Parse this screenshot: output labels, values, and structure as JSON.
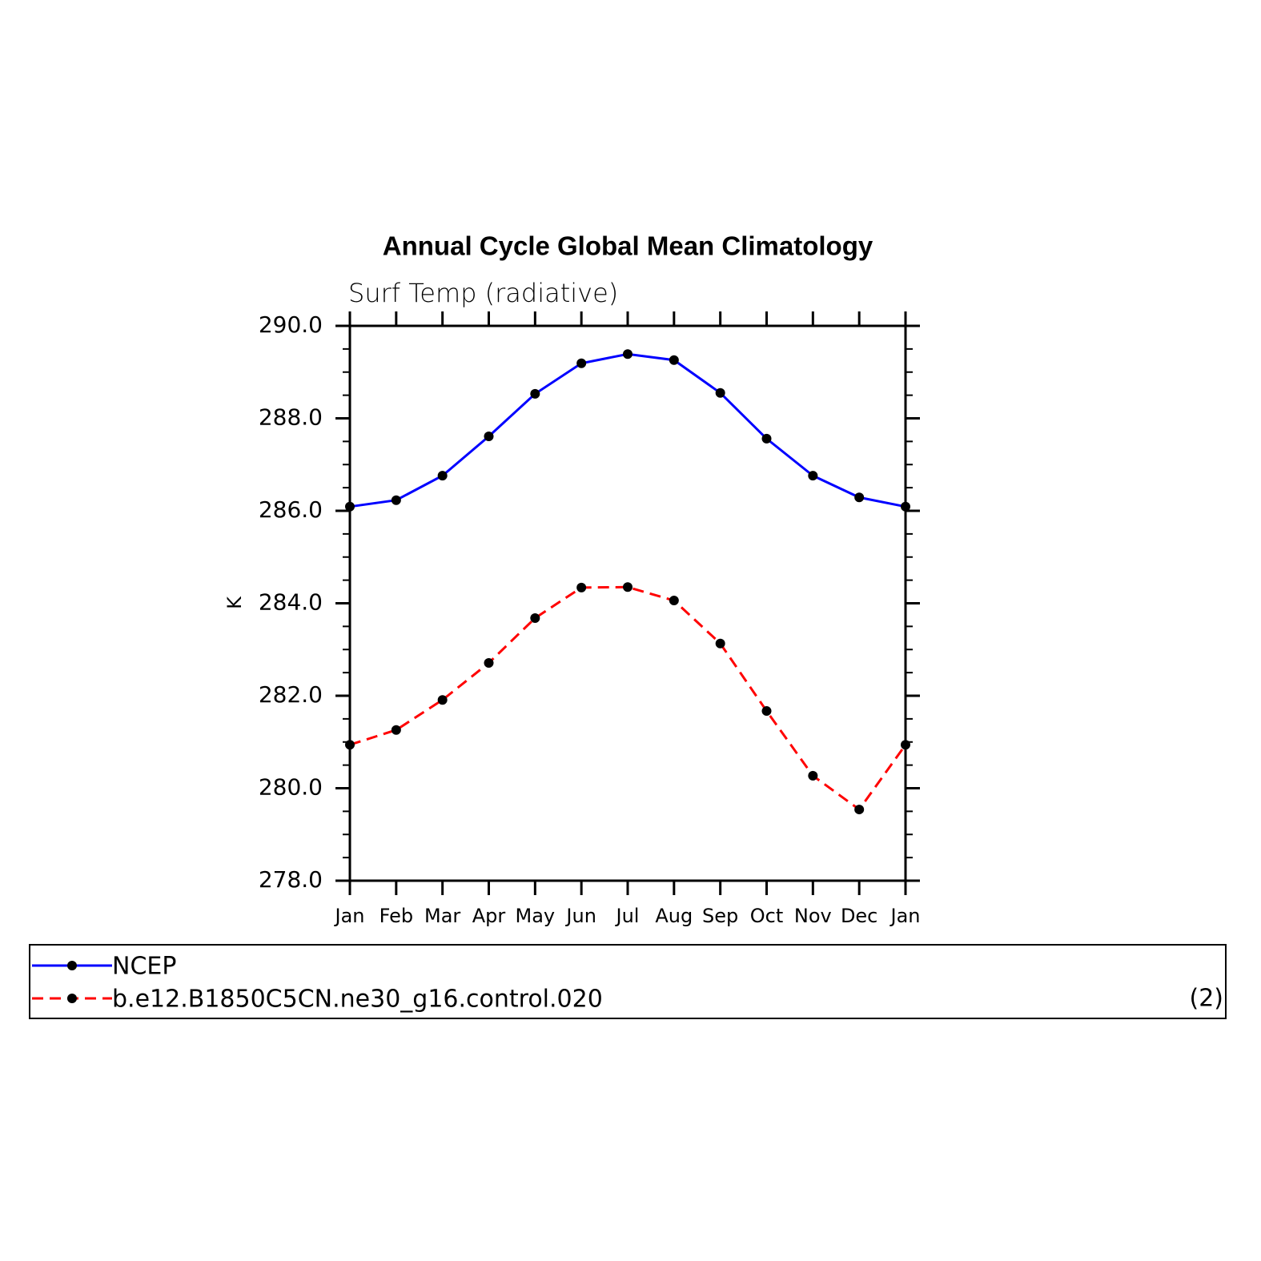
{
  "chart_data": {
    "type": "line",
    "title": "Annual Cycle Global Mean Climatology",
    "subtitle": "Surf Temp (radiative)",
    "ylabel": "K",
    "categories": [
      "Jan",
      "Feb",
      "Mar",
      "Apr",
      "May",
      "Jun",
      "Jul",
      "Aug",
      "Sep",
      "Oct",
      "Nov",
      "Dec",
      "Jan"
    ],
    "series": [
      {
        "name": "NCEP",
        "color": "#0000ff",
        "dash": false,
        "values": [
          286.09,
          286.23,
          286.76,
          287.61,
          288.53,
          289.19,
          289.39,
          289.26,
          288.55,
          287.56,
          286.76,
          286.29,
          286.09
        ]
      },
      {
        "name": "b.e12.B1850C5CN.ne30_g16.control.020",
        "color": "#ff0000",
        "dash": true,
        "values": [
          280.94,
          281.26,
          281.91,
          282.71,
          283.68,
          284.34,
          284.35,
          284.06,
          283.13,
          281.67,
          280.27,
          279.54,
          280.94
        ]
      }
    ],
    "ylim": [
      278,
      290
    ],
    "yticks": [
      {
        "value": 278,
        "label": "278.0"
      },
      {
        "value": 280,
        "label": "280.0"
      },
      {
        "value": 282,
        "label": "282.0"
      },
      {
        "value": 284,
        "label": "284.0"
      },
      {
        "value": 286,
        "label": "286.0"
      },
      {
        "value": 288,
        "label": "288.0"
      },
      {
        "value": 290,
        "label": "290.0"
      }
    ],
    "yminorticks": [
      278.5,
      279,
      279.5,
      280.5,
      281,
      281.5,
      282.5,
      283,
      283.5,
      284.5,
      285,
      285.5,
      286.5,
      287,
      287.5,
      288.5,
      289,
      289.5
    ],
    "marker_color": "#000000",
    "legend_note": "(2)"
  }
}
